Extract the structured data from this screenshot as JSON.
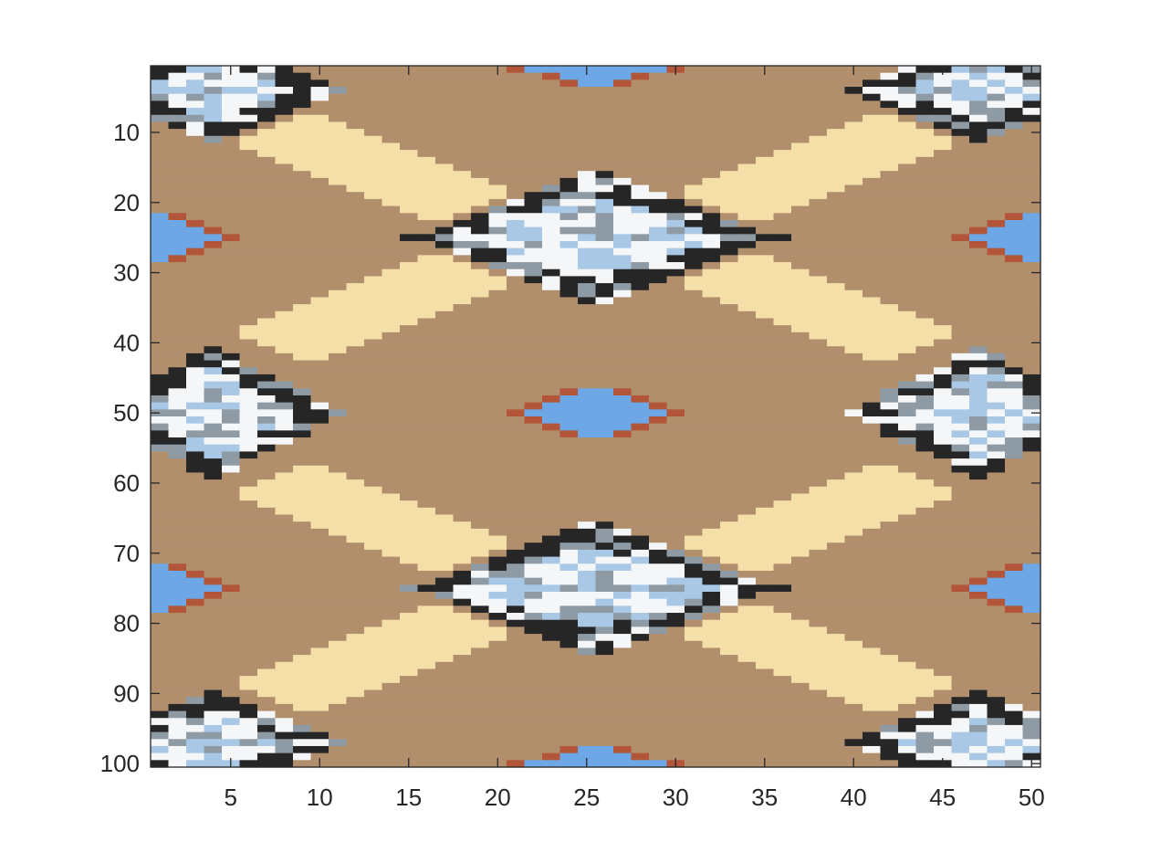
{
  "chart_data": {
    "type": "heatmap",
    "title": "",
    "xlabel": "",
    "ylabel": "",
    "xlim": [
      0.5,
      50.5
    ],
    "ylim": [
      0.5,
      100.5
    ],
    "y_reversed": true,
    "grid": false,
    "legend": "none",
    "columns": 50,
    "rows": 100,
    "x_ticks": [
      5,
      10,
      15,
      20,
      25,
      30,
      35,
      40,
      45,
      50
    ],
    "y_ticks": [
      10,
      20,
      30,
      40,
      50,
      60,
      70,
      80,
      90,
      100
    ],
    "x_tick_labels": [
      "5",
      "10",
      "15",
      "20",
      "25",
      "30",
      "35",
      "40",
      "45",
      "50"
    ],
    "y_tick_labels": [
      "10",
      "20",
      "30",
      "40",
      "50",
      "60",
      "70",
      "80",
      "90",
      "100"
    ],
    "colors": {
      "background": "#b18f6d",
      "band": "#f5dfa8",
      "blue": "#6ea7e6",
      "light_blue": "#a9c8e6",
      "red": "#b35538",
      "dark": "#262626",
      "white": "#f4f6f8",
      "gray": "#8f9ba4",
      "axis": "#262626"
    },
    "features": {
      "bands": [
        {
          "y0": 10,
          "x0": 8,
          "y1": 20,
          "x1": 18
        },
        {
          "y0": 10,
          "x0": 43,
          "y1": 20,
          "x1": 33
        },
        {
          "y0": 40,
          "x0": 8,
          "y1": 30,
          "x1": 18
        },
        {
          "y0": 40,
          "x0": 43,
          "y1": 30,
          "x1": 33
        },
        {
          "y0": 60,
          "x0": 8,
          "y1": 70,
          "x1": 18
        },
        {
          "y0": 60,
          "x0": 43,
          "y1": 70,
          "x1": 33
        },
        {
          "y0": 90,
          "x0": 8,
          "y1": 80,
          "x1": 18
        },
        {
          "y0": 90,
          "x0": 43,
          "y1": 80,
          "x1": 33
        }
      ],
      "motifs": [
        {
          "cx": 25.5,
          "cy": 25,
          "rx": 10,
          "ry": 9
        },
        {
          "cx": 25.5,
          "cy": 75,
          "rx": 10,
          "ry": 9
        },
        {
          "cx": 4,
          "cy": 50,
          "rx": 7,
          "ry": 9
        },
        {
          "cx": 47,
          "cy": 50,
          "rx": 7,
          "ry": 9
        },
        {
          "cx": 4,
          "cy": 4,
          "rx": 7,
          "ry": 7
        },
        {
          "cx": 47,
          "cy": 4,
          "rx": 7,
          "ry": 7
        },
        {
          "cx": 4,
          "cy": 97,
          "rx": 7,
          "ry": 7
        },
        {
          "cx": 47,
          "cy": 97,
          "rx": 7,
          "ry": 7
        }
      ],
      "diamonds": [
        {
          "cx": 25.5,
          "cy": 50,
          "rx": 4.5,
          "ry": 4.5
        },
        {
          "cx": 25.5,
          "cy": 1,
          "rx": 4.5,
          "ry": 3
        },
        {
          "cx": 25.5,
          "cy": 100,
          "rx": 4.5,
          "ry": 3
        },
        {
          "cx": 1,
          "cy": 25,
          "rx": 4,
          "ry": 4
        },
        {
          "cx": 50,
          "cy": 25,
          "rx": 4,
          "ry": 4
        },
        {
          "cx": 1,
          "cy": 75,
          "rx": 4,
          "ry": 4
        },
        {
          "cx": 50,
          "cy": 75,
          "rx": 4,
          "ry": 4
        }
      ]
    }
  }
}
